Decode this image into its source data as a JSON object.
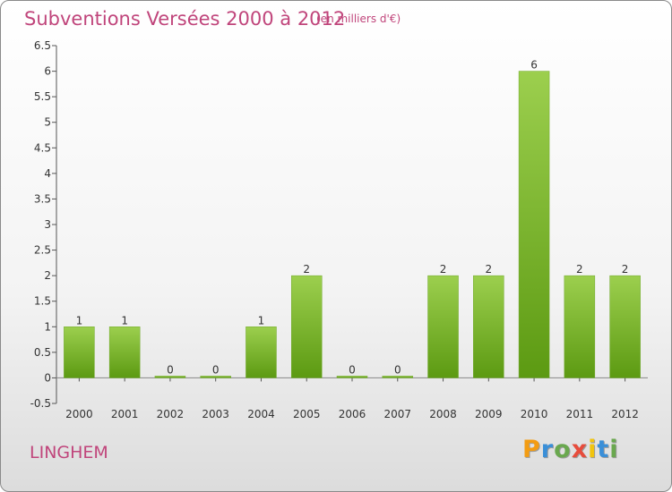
{
  "chart_data": {
    "type": "bar",
    "title": "Subventions Versées 2000 à 2012",
    "subtitle": "(en milliers d'€)",
    "categories": [
      "2000",
      "2001",
      "2002",
      "2003",
      "2004",
      "2005",
      "2006",
      "2007",
      "2008",
      "2009",
      "2010",
      "2011",
      "2012"
    ],
    "values": [
      1,
      1,
      0,
      0,
      1,
      2,
      0,
      0,
      2,
      2,
      6,
      2,
      2
    ],
    "data_labels": [
      "1",
      "1",
      "0",
      "0",
      "1",
      "2",
      "0",
      "0",
      "2",
      "2",
      "6",
      "2",
      "2"
    ],
    "y_ticks": [
      "-0.5",
      "0",
      "0.5",
      "1",
      "1.5",
      "2",
      "2.5",
      "3",
      "3.5",
      "4",
      "4.5",
      "5",
      "5.5",
      "6",
      "6.5"
    ],
    "ylim": [
      -0.5,
      6.5
    ],
    "grid": false,
    "bar_color": "#7fb832"
  },
  "footer": {
    "commune": "LINGHEM",
    "brand_letters": [
      "P",
      "r",
      "o",
      "x",
      "i",
      "t",
      "i"
    ],
    "brand_colors": [
      "#f39c12",
      "#3a8fd8",
      "#6aa84f",
      "#e74c3c",
      "#f1c40f",
      "#3a8fd8",
      "#6aa84f"
    ]
  }
}
